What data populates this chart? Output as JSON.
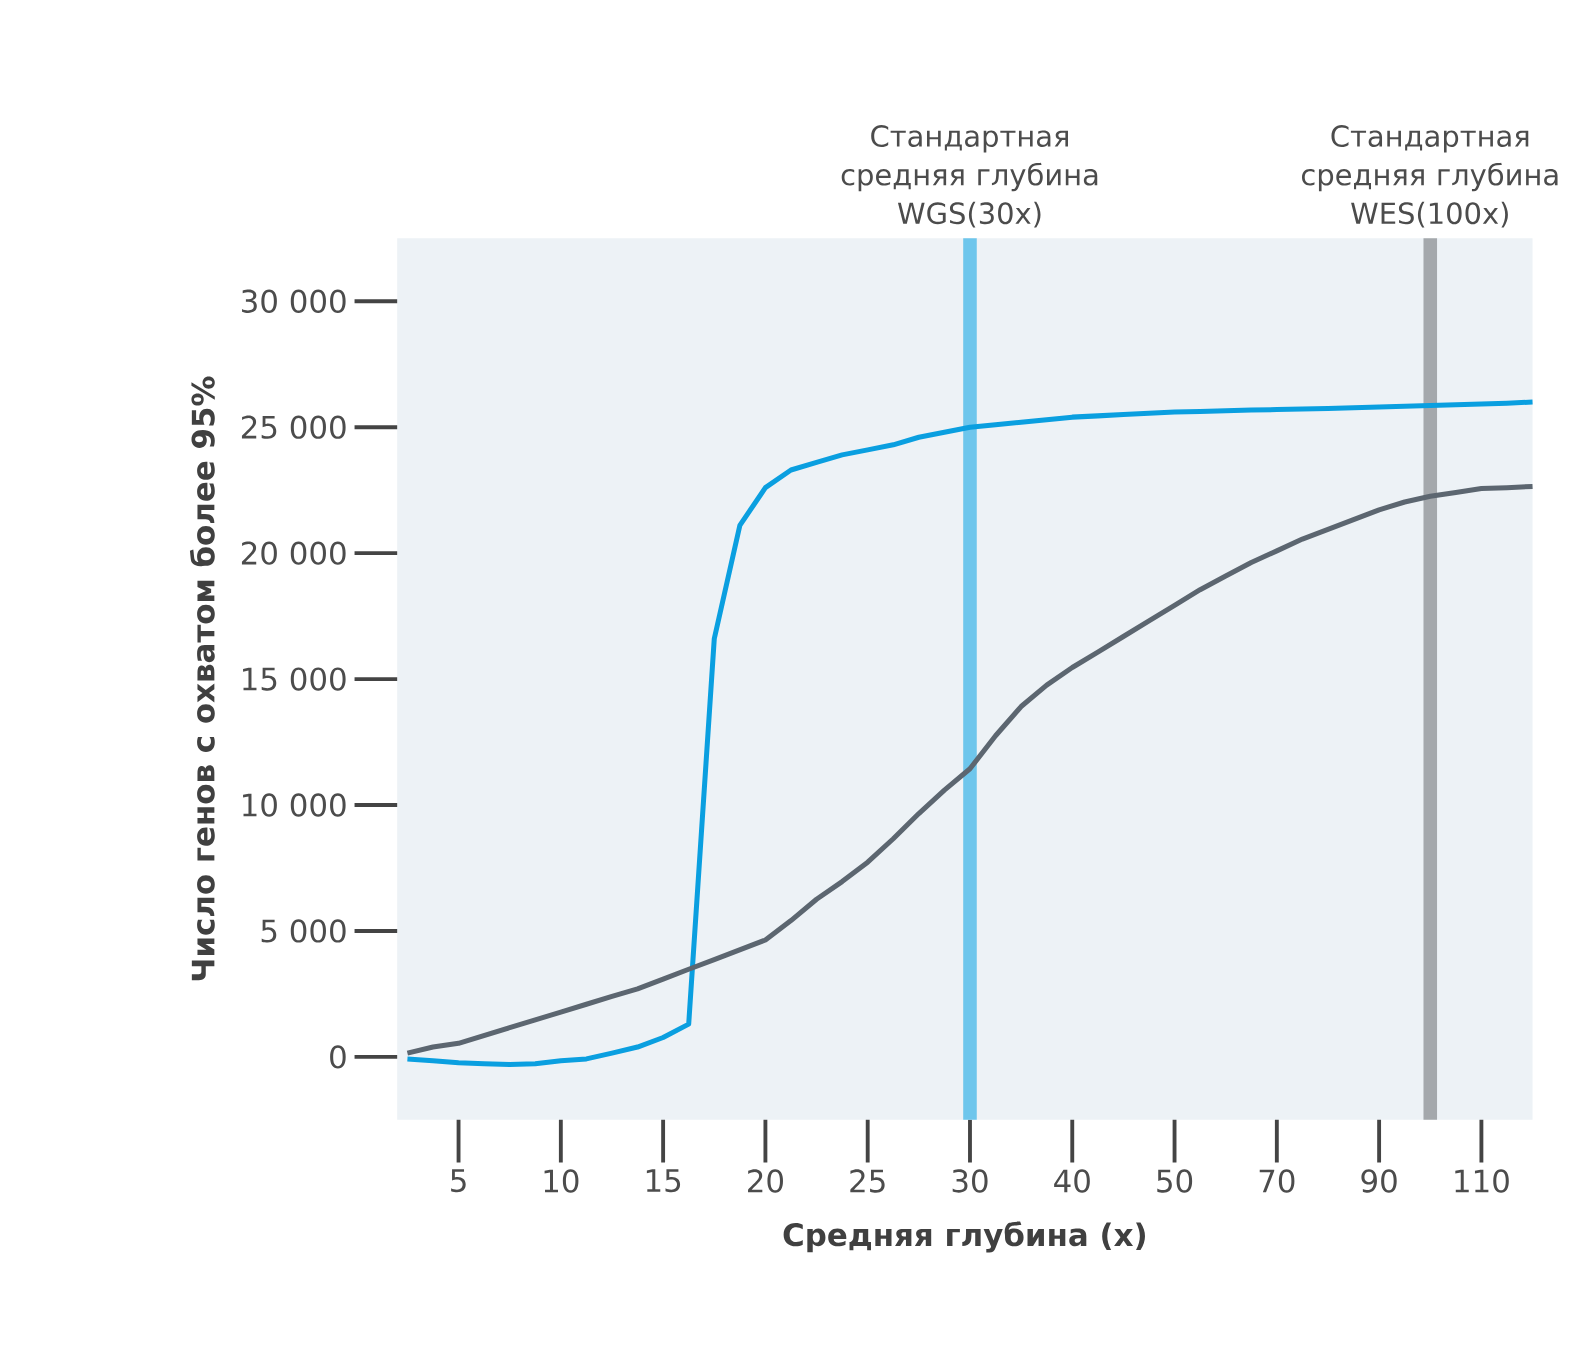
{
  "chart_data": {
    "type": "line",
    "xlabel": "Средняя глубина (x)",
    "ylabel": "Число генов с охватом более 95%",
    "categories": [
      null,
      null,
      "5",
      null,
      null,
      null,
      "10",
      null,
      null,
      null,
      "15",
      null,
      null,
      null,
      "20",
      null,
      null,
      null,
      "25",
      null,
      null,
      null,
      "30",
      null,
      null,
      null,
      "40",
      null,
      null,
      null,
      "50",
      null,
      null,
      null,
      "70",
      null,
      null,
      null,
      "90",
      null,
      null,
      null,
      "110",
      null,
      null
    ],
    "ylim": [
      -2500,
      32500
    ],
    "yticks": [
      {
        "value": 0,
        "label": "0"
      },
      {
        "value": 5000,
        "label": "5 000"
      },
      {
        "value": 10000,
        "label": "10 000"
      },
      {
        "value": 15000,
        "label": "15 000"
      },
      {
        "value": 20000,
        "label": "20 000"
      },
      {
        "value": 25000,
        "label": "25 000"
      },
      {
        "value": 30000,
        "label": "30 000"
      }
    ],
    "series": [
      {
        "color": "#0a9fe0",
        "values": [
          -80,
          -150,
          -230,
          -270,
          -300,
          -270,
          -150,
          -80,
          150,
          390,
          770,
          1300,
          16600,
          21100,
          22600,
          23300,
          23600,
          23900,
          24100,
          24300,
          24600,
          24800,
          25000,
          25100,
          25200,
          25300,
          25400,
          25450,
          25500,
          25550,
          25600,
          25620,
          25650,
          25680,
          25700,
          25720,
          25740,
          25770,
          25800,
          25830,
          25860,
          25890,
          25920,
          25950,
          26000
        ]
      },
      {
        "color": "#5c6670",
        "values": [
          150,
          390,
          540,
          850,
          1160,
          1470,
          1780,
          2090,
          2400,
          2700,
          3090,
          3480,
          3860,
          4250,
          4640,
          5410,
          6260,
          6960,
          7730,
          8660,
          9660,
          10590,
          11440,
          12750,
          13910,
          14760,
          15460,
          16070,
          16690,
          17310,
          17930,
          18550,
          19090,
          19630,
          20090,
          20560,
          20940,
          21330,
          21720,
          22030,
          22260,
          22410,
          22570,
          22600,
          22650
        ]
      }
    ],
    "ref_lines": [
      {
        "axis": "x",
        "value": "30",
        "label": "Стандартная средняя глубина WGS(30x)",
        "color": "#6ec6ec"
      }
    ],
    "annotations": [
      "Стандартная средняя глубина WES(100x)"
    ],
    "grid": false,
    "marker": "none",
    "line_style": "solid"
  }
}
